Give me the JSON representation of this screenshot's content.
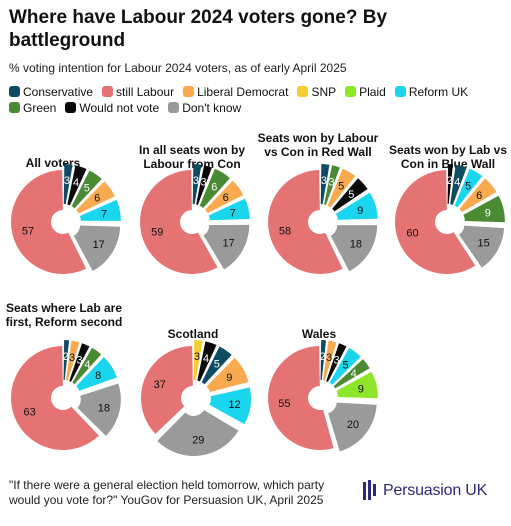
{
  "title": "Where have Labour 2024 voters gone? By battleground",
  "subtitle": "% voting intention for Labour 2024 voters, as of early April 2025",
  "footer": "\"If there were a general election held tomorrow, which party would you vote for?\" YouGov for Persuasion UK, April 2025",
  "brand": "Persuasion UK",
  "legend": [
    {
      "label": "Conservative",
      "color": "#0e4c64"
    },
    {
      "label": "still Labour",
      "color": "#e57373"
    },
    {
      "label": "Liberal Democrat",
      "color": "#f9a94e"
    },
    {
      "label": "SNP",
      "color": "#f6cd2e"
    },
    {
      "label": "Plaid",
      "color": "#8ee62b"
    },
    {
      "label": "Reform UK",
      "color": "#19d6ee"
    },
    {
      "label": "Green",
      "color": "#4a8a32"
    },
    {
      "label": "Would not vote",
      "color": "#0a0a0a"
    },
    {
      "label": "Don't know",
      "color": "#9a9a9a"
    }
  ],
  "chart_data": [
    {
      "type": "pie",
      "title": "All voters",
      "slices": [
        {
          "name": "Conservative",
          "value": 3
        },
        {
          "name": "Would not vote",
          "value": 4
        },
        {
          "name": "Green",
          "value": 5
        },
        {
          "name": "Liberal Democrat",
          "value": 6
        },
        {
          "name": "Reform UK",
          "value": 7
        },
        {
          "name": "Don't know",
          "value": 17
        },
        {
          "name": "still Labour",
          "value": 57
        }
      ]
    },
    {
      "type": "pie",
      "title": "In all seats won by Labour from Con",
      "slices": [
        {
          "name": "Conservative",
          "value": 3
        },
        {
          "name": "Would not vote",
          "value": 3
        },
        {
          "name": "Green",
          "value": 6
        },
        {
          "name": "Liberal Democrat",
          "value": 6
        },
        {
          "name": "Reform UK",
          "value": 7
        },
        {
          "name": "Don't know",
          "value": 17
        },
        {
          "name": "still Labour",
          "value": 59
        }
      ]
    },
    {
      "type": "pie",
      "title": "Seats won by Labour vs Con in Red Wall",
      "slices": [
        {
          "name": "Conservative",
          "value": 3
        },
        {
          "name": "Green",
          "value": 3
        },
        {
          "name": "Liberal Democrat",
          "value": 5
        },
        {
          "name": "Would not vote",
          "value": 5
        },
        {
          "name": "Reform UK",
          "value": 9
        },
        {
          "name": "Don't know",
          "value": 18
        },
        {
          "name": "still Labour",
          "value": 58
        }
      ]
    },
    {
      "type": "pie",
      "title": "Seats won by Lab vs Con in Blue Wall",
      "slices": [
        {
          "name": "Would not vote",
          "value": 2
        },
        {
          "name": "Conservative",
          "value": 4
        },
        {
          "name": "Reform UK",
          "value": 5
        },
        {
          "name": "Liberal Democrat",
          "value": 6
        },
        {
          "name": "Green",
          "value": 9
        },
        {
          "name": "Don't know",
          "value": 15
        },
        {
          "name": "still Labour",
          "value": 60
        }
      ]
    },
    {
      "type": "pie",
      "title": "Seats where Lab are first, Reform second",
      "slices": [
        {
          "name": "Conservative",
          "value": 2
        },
        {
          "name": "Liberal Democrat",
          "value": 3
        },
        {
          "name": "Would not vote",
          "value": 3
        },
        {
          "name": "Green",
          "value": 4
        },
        {
          "name": "Reform UK",
          "value": 8
        },
        {
          "name": "Don't know",
          "value": 18
        },
        {
          "name": "still Labour",
          "value": 63
        }
      ]
    },
    {
      "type": "pie",
      "title": "Scotland",
      "slices": [
        {
          "name": "SNP",
          "value": 3
        },
        {
          "name": "Would not vote",
          "value": 4
        },
        {
          "name": "Conservative",
          "value": 5
        },
        {
          "name": "Liberal Democrat",
          "value": 9
        },
        {
          "name": "Reform UK",
          "value": 12
        },
        {
          "name": "Don't know",
          "value": 29
        },
        {
          "name": "still Labour",
          "value": 37
        }
      ]
    },
    {
      "type": "pie",
      "title": "Wales",
      "slices": [
        {
          "name": "Conservative",
          "value": 2
        },
        {
          "name": "Liberal Democrat",
          "value": 3
        },
        {
          "name": "Would not vote",
          "value": 3
        },
        {
          "name": "Reform UK",
          "value": 5
        },
        {
          "name": "Green",
          "value": 4
        },
        {
          "name": "Plaid",
          "value": 9
        },
        {
          "name": "Don't know",
          "value": 20
        },
        {
          "name": "still Labour",
          "value": 55
        }
      ]
    }
  ]
}
